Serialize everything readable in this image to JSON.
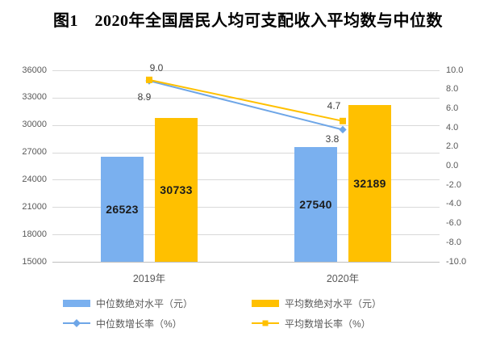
{
  "title": "图1　2020年全国居民人均可支配收入平均数与中位数",
  "chart_data": {
    "type": "bar",
    "subtype": "bar-line-combo",
    "title": "图1　2020年全国居民人均可支配收入平均数与中位数",
    "categories": [
      "2019年",
      "2020年"
    ],
    "bar_series": [
      {
        "name": "中位数绝对水平（元）",
        "values": [
          26523,
          27540
        ],
        "color": "#7AB0EF",
        "axis": "left"
      },
      {
        "name": "平均数绝对水平（元）",
        "values": [
          30733,
          32189
        ],
        "color": "#FFC000",
        "axis": "left"
      }
    ],
    "line_series": [
      {
        "name": "中位数增长率（%）",
        "values": [
          8.9,
          3.8
        ],
        "color": "#6EA6E7",
        "marker": "diamond",
        "axis": "right"
      },
      {
        "name": "平均数增长率（%）",
        "values": [
          9.0,
          4.7
        ],
        "color": "#FFC000",
        "marker": "square",
        "axis": "right"
      }
    ],
    "left_axis": {
      "min": 15000,
      "max": 36000,
      "step": 3000,
      "ticks": [
        "36000",
        "33000",
        "30000",
        "27000",
        "24000",
        "21000",
        "18000",
        "15000"
      ]
    },
    "right_axis": {
      "min": -10,
      "max": 10,
      "step": 2,
      "ticks": [
        "10.0",
        "8.0",
        "6.0",
        "4.0",
        "2.0",
        "0.0",
        "-2.0",
        "-4.0",
        "-6.0",
        "-8.0",
        "-10.0"
      ]
    },
    "grid": true,
    "legend_position": "bottom"
  },
  "legend": {
    "items": [
      {
        "label": "中位数绝对水平（元）",
        "swatch": "bar",
        "color": "#7AB0EF"
      },
      {
        "label": "平均数绝对水平（元）",
        "swatch": "bar",
        "color": "#FFC000"
      },
      {
        "label": "中位数增长率（%）",
        "swatch": "line-diamond",
        "color": "#6EA6E7"
      },
      {
        "label": "平均数增长率（%）",
        "swatch": "line-square",
        "color": "#FFC000"
      }
    ]
  },
  "colors": {
    "gridline": "#D9D9D9",
    "axis_line": "#BFBFBF",
    "axis_text": "#595959",
    "bar_label": "#1C1C1C",
    "point_label": "#404040",
    "title_text": "#000000",
    "background": "#FFFFFF"
  }
}
